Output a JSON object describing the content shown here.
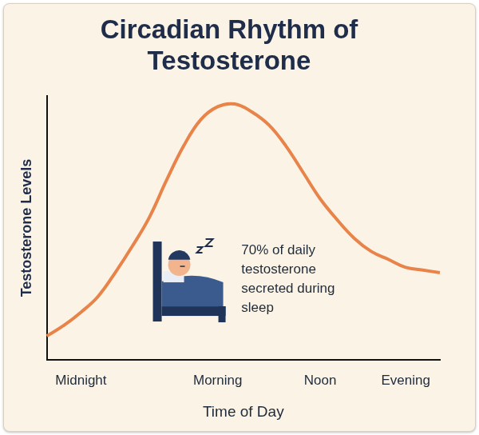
{
  "chart_data": {
    "type": "line",
    "title": "Circadian Rhythm of Testosterone",
    "x_label": "Time of Day",
    "y_label": "Testosterone Levels",
    "categories": [
      null,
      null,
      "Midnight",
      null,
      null,
      null,
      null,
      null,
      null,
      null,
      "Morning",
      null,
      null,
      null,
      null,
      null,
      "Noon",
      null,
      null,
      null,
      null,
      "Evening",
      null,
      null
    ],
    "values": [
      9,
      13,
      18,
      24,
      33,
      43,
      54,
      68,
      81,
      91,
      96,
      97,
      94,
      89,
      81,
      71,
      61,
      53,
      46,
      41,
      38,
      35,
      34,
      33
    ],
    "color": "#e8834a",
    "ylim": [
      0,
      100
    ],
    "grid": false,
    "tick_labels": "x",
    "annotation": "70% of daily testosterone secreted during sleep"
  }
}
